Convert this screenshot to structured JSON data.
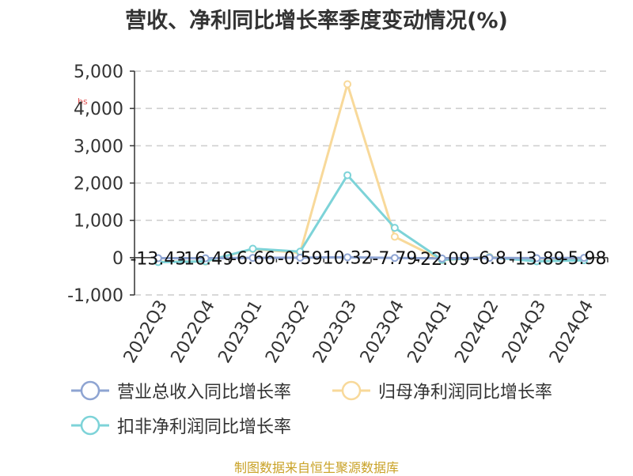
{
  "title": "营收、净利同比增长率季度变动情况(%)",
  "source_note": "制图数据来自恒生聚源数据库",
  "watermark_text": "bs",
  "colors": {
    "revenue": "#8ea4d2",
    "net_profit": "#f8d99a",
    "deducted_profit": "#7dd3d8",
    "grid": "#cccccc",
    "axis": "#333333",
    "source": "#c9a227"
  },
  "chart_data": {
    "type": "line",
    "title": "营收、净利同比增长率季度变动情况(%)",
    "categories": [
      "2022Q3",
      "2022Q4",
      "2023Q1",
      "2023Q2",
      "2023Q3",
      "2023Q4",
      "2024Q1",
      "2024Q2",
      "2024Q3",
      "2024Q4"
    ],
    "ylim": [
      -1000,
      5000
    ],
    "yticks": [
      -1000,
      0,
      1000,
      2000,
      3000,
      4000,
      5000
    ],
    "ytick_labels": [
      "-1,000",
      "0",
      "1,000",
      "2,000",
      "3,000",
      "4,000",
      "5,000"
    ],
    "grid": true,
    "legend_position": "bottom",
    "series": [
      {
        "name": "营业总收入同比增长率",
        "values": [
          -13.43,
          -16.49,
          -6.66,
          -0.59,
          10.32,
          -7.79,
          -22.09,
          -6.8,
          -13.89,
          -5.98
        ],
        "labels": [
          "-13.43",
          "-16.49",
          "-6.66",
          "-0.59",
          "10.32",
          "-7.79",
          "-22.09",
          "-6.8",
          "-13.89",
          "-5.98"
        ],
        "color": "#8ea4d2"
      },
      {
        "name": "归母净利润同比增长率",
        "values": [
          -110,
          -105,
          230,
          130,
          4650,
          560,
          -70,
          20,
          -90,
          -60
        ],
        "color": "#f8d99a"
      },
      {
        "name": "扣非净利润同比增长率",
        "values": [
          -120,
          -100,
          240,
          160,
          2210,
          800,
          -60,
          10,
          -100,
          -70
        ],
        "color": "#7dd3d8"
      }
    ]
  }
}
